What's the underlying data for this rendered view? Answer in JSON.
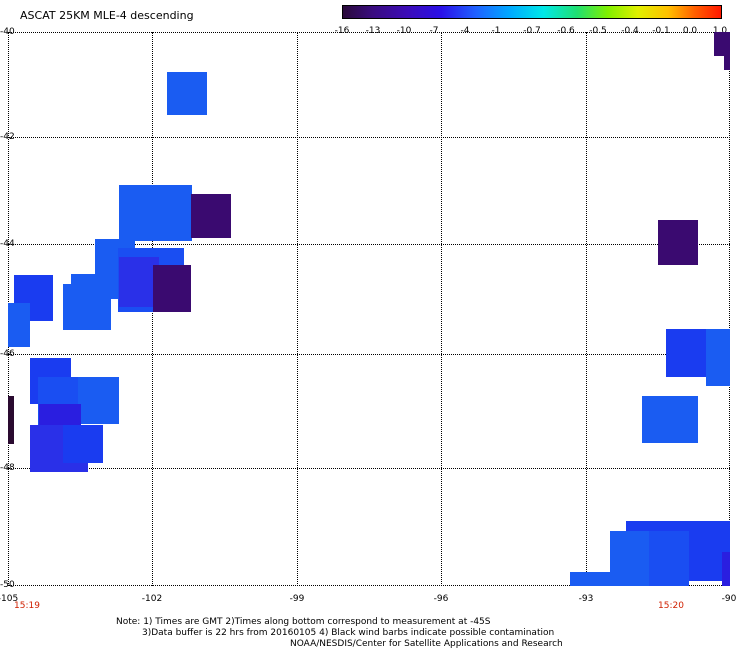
{
  "title": "ASCAT 25KM MLE-4 descending",
  "colorbar": {
    "labels": [
      "-16",
      "-13",
      "-10",
      "-7",
      "-4",
      "-1",
      "-0.7",
      "-0.6",
      "-0.5",
      "-0.4",
      "-0.1",
      "0.0",
      "1.0"
    ],
    "colors": [
      "#2a0a3a",
      "#3a1070",
      "#3c0ca8",
      "#2a10e0",
      "#2060ff",
      "#00b0ff",
      "#00e8e0",
      "#20e070",
      "#60f000",
      "#c0f000",
      "#ffe000",
      "#ff8000",
      "#ff2000"
    ]
  },
  "lat_labels": [
    "-40",
    "-42",
    "-44",
    "-46",
    "-48",
    "-50"
  ],
  "lon_labels": [
    "-105",
    "-102",
    "-99",
    "-96",
    "-93",
    "-90"
  ],
  "times": [
    "15:19",
    "15:20"
  ],
  "note": {
    "line1": "Note: 1) Times are GMT 2)Times along bottom correspond to measurement at -45S",
    "line2": "3)Data buffer is 22 hrs from 20160105 4) Black wind barbs indicate possible contamination",
    "line3": "NOAA/NESDIS/Center for Satellite Applications and Research"
  },
  "colors": {
    "blue": "#1a5cf2",
    "blue_dark": "#1a3cf0",
    "blue_deep": "#2a1ee0",
    "purple": "#3a0a70",
    "dark": "#2a0a30",
    "time": "#d02000"
  }
}
